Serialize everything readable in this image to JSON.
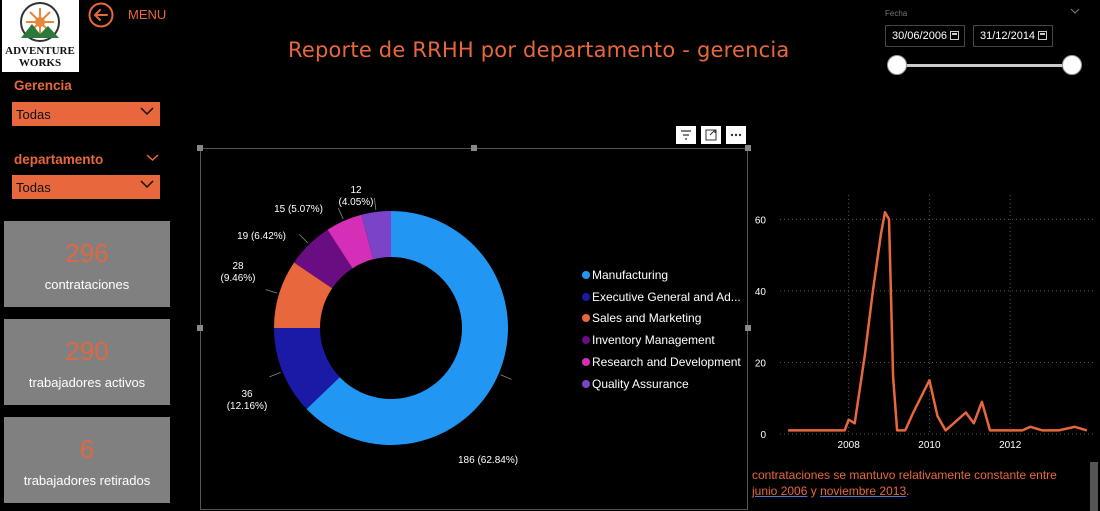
{
  "header": {
    "menu_label": "MENU",
    "title": "Reporte de RRHH por departamento - gerencia",
    "logo_text_1": "ADVENTURE",
    "logo_text_2": "WORKS"
  },
  "filters": {
    "gerencia": {
      "title": "Gerencia",
      "selected": "Todas"
    },
    "departamento": {
      "title": "departamento",
      "selected": "Todas"
    }
  },
  "date_slicer": {
    "title": "Fecha",
    "start": "30/06/2006",
    "end": "31/12/2014",
    "range_fraction": [
      0,
      1
    ]
  },
  "kpis": [
    {
      "value": "296",
      "label": "contrataciones"
    },
    {
      "value": "290",
      "label": "trabajadores activos"
    },
    {
      "value": "6",
      "label": "trabajadores retirados"
    }
  ],
  "donut_chart": {
    "legend_items": [
      {
        "name": "Manufacturing",
        "color": "#2196f3"
      },
      {
        "name": "Executive General and Ad...",
        "color": "#1a1aa6"
      },
      {
        "name": "Sales and Marketing",
        "color": "#e8673c"
      },
      {
        "name": "Inventory Management",
        "color": "#6a0d83"
      },
      {
        "name": "Research and Development",
        "color": "#d52eb7"
      },
      {
        "name": "Quality Assurance",
        "color": "#7b44c8"
      }
    ]
  },
  "chart_data": [
    {
      "type": "pie",
      "categories": [
        "Manufacturing",
        "Executive General and Ad...",
        "Sales and Marketing",
        "Inventory Management",
        "Research and Development",
        "Quality Assurance"
      ],
      "values": [
        186,
        36,
        28,
        19,
        15,
        12
      ],
      "data_labels": [
        "186 (62.84%)",
        "36 (12.16%)",
        "28 (9.46%)",
        "19 (6.42%)",
        "15 (5.07%)",
        "12 (4.05%)"
      ]
    },
    {
      "type": "line",
      "x": [
        2006.5,
        2007.0,
        2007.5,
        2007.8,
        2007.9,
        2008.0,
        2008.15,
        2008.4,
        2008.6,
        2008.8,
        2008.9,
        2009.0,
        2009.1,
        2009.2,
        2009.4,
        2009.6,
        2010.0,
        2010.2,
        2010.4,
        2010.6,
        2010.9,
        2011.1,
        2011.3,
        2011.5,
        2011.8,
        2012.0,
        2012.3,
        2012.5,
        2012.8,
        2013.2,
        2013.6,
        2013.9
      ],
      "y": [
        1,
        1,
        1,
        1,
        1,
        4,
        3,
        22,
        40,
        56,
        62,
        60,
        16,
        1,
        1,
        6,
        15,
        5,
        1,
        3,
        6,
        3,
        9,
        1,
        1,
        1,
        1,
        2,
        1,
        1,
        2,
        1
      ],
      "x_ticks": [
        "2008",
        "2010",
        "2012"
      ],
      "x_tick_values": [
        2008,
        2010,
        2012
      ],
      "y_ticks": [
        "0",
        "20",
        "40",
        "60"
      ],
      "y_tick_values": [
        0,
        20,
        40,
        60
      ],
      "xlim": [
        2006.3,
        2014.1
      ],
      "ylim": [
        0,
        64
      ],
      "color": "#e8673c",
      "grid": true
    }
  ],
  "narrative": {
    "line1": "contrataciones se mantuvo relativamente constante entre",
    "hl1": "junio 2006",
    "mid": " y ",
    "hl2": "noviembre 2013",
    "end": "."
  }
}
